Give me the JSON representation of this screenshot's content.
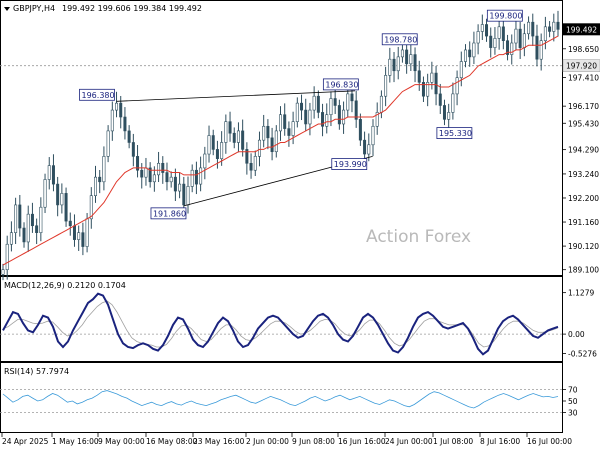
{
  "header": {
    "symbol_label": "GBPJPY,H4",
    "ohlc": "199.492 199.606 199.384 199.492"
  },
  "watermark": "Action Forex",
  "colors": {
    "candle": "#2f4f5f",
    "ma": "#e0382b",
    "macd": "#1a237e",
    "signal": "#a0a0a0",
    "rsi": "#3a9ad9",
    "label_border": "#1a237e",
    "label_text": "#1a237e",
    "grid_dash": "#9a9a9a"
  },
  "chart_data": [
    {
      "name": "price",
      "type": "candlestick",
      "symbol": "GBPJPY",
      "timeframe": "H4",
      "y_ticks": [
        "199.492",
        "198.650",
        "197.920",
        "197.410",
        "196.170",
        "195.430",
        "194.290",
        "193.240",
        "192.200",
        "191.160",
        "190.120",
        "189.100"
      ],
      "ylim": [
        189.0,
        200.5
      ],
      "current_price": 199.492,
      "current_price_label": "199.492",
      "dashed_level": 197.92,
      "dashed_level_label": "197.920",
      "close_series": [
        189.1,
        190.2,
        190.7,
        191.9,
        190.9,
        190.3,
        191.5,
        191.0,
        190.7,
        191.8,
        193.0,
        193.6,
        192.8,
        191.9,
        192.4,
        191.2,
        191.0,
        190.4,
        190.7,
        190.1,
        191.3,
        192.3,
        193.1,
        192.9,
        194.0,
        195.1,
        196.0,
        196.3,
        195.7,
        195.1,
        194.6,
        194.0,
        193.4,
        193.1,
        193.5,
        192.9,
        193.2,
        193.7,
        193.3,
        192.9,
        193.1,
        192.5,
        192.8,
        191.9,
        192.7,
        193.4,
        192.8,
        193.5,
        194.1,
        194.9,
        194.3,
        193.9,
        194.6,
        195.5,
        195.0,
        194.6,
        195.1,
        194.3,
        193.7,
        193.4,
        194.0,
        194.7,
        195.3,
        194.8,
        194.2,
        195.1,
        195.8,
        195.2,
        194.9,
        195.5,
        196.3,
        196.0,
        195.4,
        196.0,
        196.6,
        195.9,
        195.3,
        195.8,
        196.5,
        196.2,
        195.4,
        196.0,
        196.7,
        196.4,
        195.6,
        194.7,
        194.1,
        194.5,
        195.3,
        195.9,
        196.6,
        197.5,
        198.2,
        197.7,
        198.3,
        198.6,
        198.0,
        198.4,
        197.7,
        197.2,
        196.6,
        197.2,
        197.6,
        196.7,
        196.2,
        195.6,
        195.9,
        196.7,
        197.4,
        198.1,
        198.6,
        198.3,
        198.9,
        199.4,
        199.7,
        199.2,
        198.7,
        199.1,
        199.6,
        199.0,
        198.4,
        198.9,
        199.5,
        198.7,
        199.3,
        199.8,
        199.2,
        198.2,
        199.0,
        199.6,
        199.4,
        199.8,
        199.49
      ],
      "ma_series": [
        189.3,
        189.4,
        189.5,
        189.6,
        189.7,
        189.8,
        189.9,
        190.0,
        190.1,
        190.2,
        190.3,
        190.4,
        190.5,
        190.6,
        190.7,
        190.8,
        190.9,
        191.0,
        191.1,
        191.2,
        191.3,
        191.4,
        191.6,
        191.8,
        192.0,
        192.3,
        192.6,
        192.9,
        193.1,
        193.3,
        193.4,
        193.5,
        193.5,
        193.5,
        193.5,
        193.4,
        193.4,
        193.4,
        193.4,
        193.4,
        193.3,
        193.3,
        193.3,
        193.2,
        193.2,
        193.2,
        193.2,
        193.3,
        193.4,
        193.5,
        193.6,
        193.7,
        193.8,
        193.9,
        194.0,
        194.1,
        194.2,
        194.2,
        194.2,
        194.2,
        194.2,
        194.3,
        194.3,
        194.4,
        194.4,
        194.5,
        194.6,
        194.6,
        194.7,
        194.8,
        194.9,
        195.0,
        195.1,
        195.2,
        195.3,
        195.4,
        195.4,
        195.5,
        195.5,
        195.6,
        195.6,
        195.6,
        195.7,
        195.7,
        195.7,
        195.7,
        195.7,
        195.7,
        195.7,
        195.8,
        195.9,
        196.0,
        196.2,
        196.4,
        196.6,
        196.8,
        196.9,
        197.0,
        197.1,
        197.1,
        197.1,
        197.1,
        197.1,
        197.1,
        197.0,
        197.0,
        197.0,
        197.1,
        197.2,
        197.3,
        197.4,
        197.5,
        197.7,
        197.9,
        198.0,
        198.1,
        198.2,
        198.3,
        198.4,
        198.4,
        198.5,
        198.5,
        198.6,
        198.6,
        198.7,
        198.8,
        198.8,
        198.8,
        198.8,
        198.9,
        199.0,
        199.1,
        199.2
      ],
      "annotations": [
        {
          "text": "199.800",
          "value": 199.8
        },
        {
          "text": "198.780",
          "value": 198.78
        },
        {
          "text": "196.380",
          "value": 196.38
        },
        {
          "text": "196.830",
          "value": 196.83
        },
        {
          "text": "195.330",
          "value": 195.33
        },
        {
          "text": "193.990",
          "value": 193.99
        },
        {
          "text": "191.860",
          "value": 191.86
        }
      ]
    },
    {
      "name": "macd",
      "type": "line",
      "title": "MACD(12,26,9) 0.2120 0.1704",
      "y_ticks": [
        "1.1279",
        "0.00",
        "-0.5276"
      ],
      "ylim": [
        -0.65,
        1.2
      ],
      "macd_series": [
        0.1,
        0.35,
        0.6,
        0.55,
        0.3,
        0.1,
        0.05,
        0.25,
        0.5,
        0.45,
        0.2,
        -0.2,
        -0.35,
        -0.2,
        0.1,
        0.35,
        0.6,
        0.85,
        0.95,
        1.1,
        1.05,
        0.8,
        0.4,
        0.0,
        -0.25,
        -0.35,
        -0.38,
        -0.3,
        -0.25,
        -0.3,
        -0.4,
        -0.45,
        -0.3,
        -0.05,
        0.25,
        0.45,
        0.4,
        0.15,
        -0.15,
        -0.3,
        -0.35,
        -0.2,
        0.05,
        0.3,
        0.45,
        0.35,
        0.1,
        -0.2,
        -0.35,
        -0.3,
        -0.1,
        0.15,
        0.3,
        0.45,
        0.5,
        0.45,
        0.3,
        0.15,
        0.0,
        -0.1,
        -0.05,
        0.15,
        0.35,
        0.5,
        0.55,
        0.45,
        0.25,
        0.0,
        -0.15,
        -0.2,
        -0.05,
        0.2,
        0.45,
        0.55,
        0.45,
        0.25,
        0.0,
        -0.25,
        -0.45,
        -0.5,
        -0.35,
        -0.1,
        0.2,
        0.45,
        0.55,
        0.6,
        0.5,
        0.35,
        0.2,
        0.15,
        0.2,
        0.25,
        0.3,
        0.15,
        -0.1,
        -0.4,
        -0.55,
        -0.45,
        -0.15,
        0.15,
        0.35,
        0.45,
        0.5,
        0.4,
        0.25,
        0.1,
        -0.05,
        -0.1,
        0.0,
        0.1,
        0.15,
        0.2
      ],
      "signal_series": [
        0.15,
        0.2,
        0.3,
        0.4,
        0.4,
        0.35,
        0.3,
        0.28,
        0.3,
        0.35,
        0.33,
        0.2,
        0.05,
        -0.05,
        -0.02,
        0.1,
        0.25,
        0.45,
        0.6,
        0.75,
        0.85,
        0.9,
        0.8,
        0.6,
        0.35,
        0.1,
        -0.1,
        -0.2,
        -0.25,
        -0.28,
        -0.3,
        -0.35,
        -0.35,
        -0.28,
        -0.12,
        0.08,
        0.22,
        0.25,
        0.15,
        0.0,
        -0.15,
        -0.2,
        -0.15,
        0.0,
        0.15,
        0.25,
        0.25,
        0.12,
        -0.05,
        -0.15,
        -0.18,
        -0.1,
        0.02,
        0.15,
        0.28,
        0.35,
        0.35,
        0.3,
        0.2,
        0.08,
        0.0,
        0.02,
        0.1,
        0.22,
        0.35,
        0.4,
        0.38,
        0.28,
        0.12,
        0.0,
        -0.05,
        0.0,
        0.12,
        0.28,
        0.38,
        0.38,
        0.28,
        0.1,
        -0.1,
        -0.25,
        -0.32,
        -0.28,
        -0.15,
        0.02,
        0.2,
        0.35,
        0.42,
        0.42,
        0.35,
        0.3,
        0.25,
        0.25,
        0.26,
        0.25,
        0.15,
        -0.05,
        -0.25,
        -0.35,
        -0.32,
        -0.2,
        -0.02,
        0.15,
        0.28,
        0.35,
        0.35,
        0.3,
        0.2,
        0.1,
        0.05,
        0.05,
        0.08,
        0.12,
        0.17
      ]
    },
    {
      "name": "rsi",
      "type": "line",
      "title": "RSI(14) 57.7974",
      "y_ticks": [
        "70",
        "50",
        "30"
      ],
      "ylim": [
        0,
        100
      ],
      "rsi_series": [
        62,
        55,
        48,
        52,
        58,
        60,
        55,
        50,
        52,
        58,
        63,
        60,
        54,
        48,
        50,
        45,
        48,
        52,
        55,
        60,
        66,
        68,
        65,
        62,
        58,
        55,
        50,
        46,
        42,
        45,
        48,
        44,
        42,
        46,
        49,
        45,
        43,
        47,
        50,
        46,
        44,
        42,
        45,
        48,
        52,
        55,
        58,
        60,
        56,
        52,
        48,
        46,
        50,
        54,
        58,
        55,
        52,
        48,
        44,
        42,
        46,
        50,
        55,
        58,
        54,
        50,
        53,
        57,
        60,
        56,
        52,
        55,
        58,
        54,
        50,
        46,
        44,
        48,
        52,
        50,
        46,
        42,
        40,
        44,
        50,
        56,
        62,
        66,
        64,
        60,
        56,
        52,
        48,
        44,
        40,
        38,
        42,
        48,
        52,
        56,
        60,
        63,
        60,
        56,
        52,
        56,
        60,
        63,
        60,
        57,
        58,
        56,
        57.8
      ]
    }
  ],
  "x_axis": {
    "labels": [
      "24 Apr 2025",
      "1 May 16:00",
      "9 May 00:00",
      "16 May 08:00",
      "23 May 16:00",
      "2 Jun 00:00",
      "9 Jun 08:00",
      "16 Jun 16:00",
      "24 Jun 00:00",
      "1 Jul 08:00",
      "8 Jul 16:00",
      "16 Jul 00:00"
    ]
  }
}
